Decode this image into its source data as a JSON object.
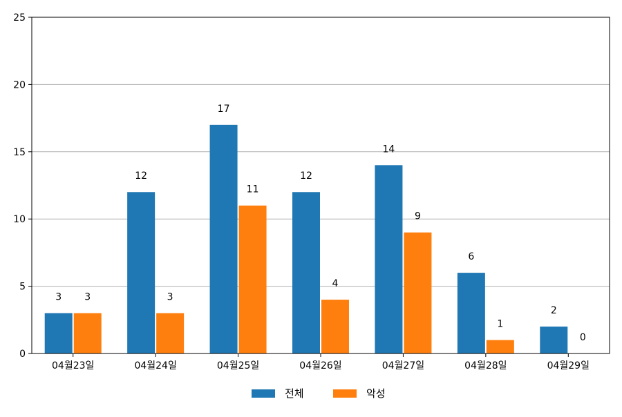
{
  "chart_data": {
    "type": "bar",
    "categories": [
      "04월23일",
      "04월24일",
      "04월25일",
      "04월26일",
      "04월27일",
      "04월28일",
      "04월29일"
    ],
    "series": [
      {
        "name": "전체",
        "values": [
          3,
          12,
          17,
          12,
          14,
          6,
          2
        ],
        "color": "#1f77b4"
      },
      {
        "name": "악성",
        "values": [
          3,
          3,
          11,
          4,
          9,
          1,
          0
        ],
        "color": "#ff7f0e"
      }
    ],
    "ylim": [
      0,
      25
    ],
    "yticks": [
      0,
      5,
      10,
      15,
      20,
      25
    ],
    "grid": "horizontal",
    "legend_position": "bottom-center",
    "title": "",
    "xlabel": "",
    "ylabel": ""
  }
}
